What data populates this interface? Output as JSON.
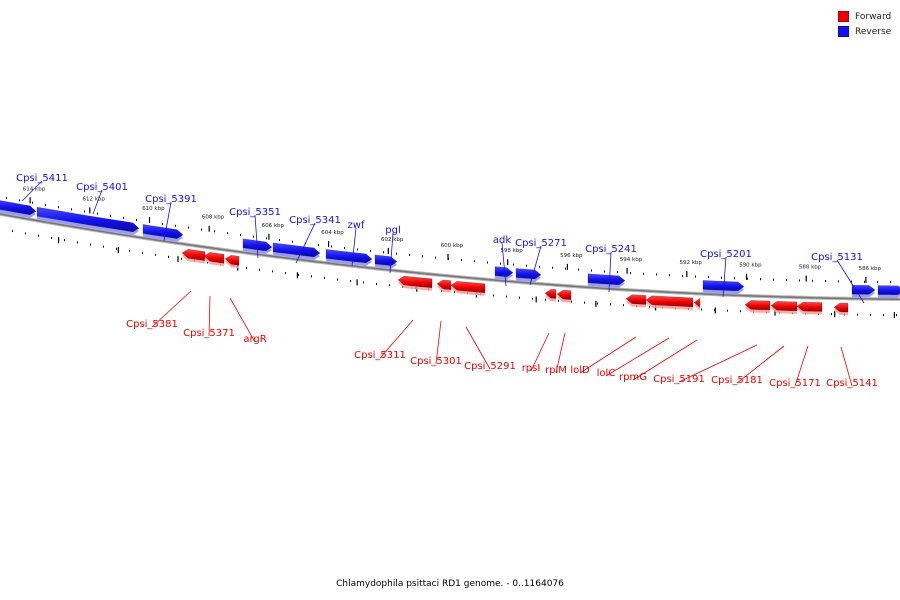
{
  "legend": [
    {
      "label": "Forward",
      "color": "#ee0000"
    },
    {
      "label": "Reverse",
      "color": "#1111ee"
    }
  ],
  "caption": "Chlamydophila psittaci RD1 genome. - 0..1164076",
  "colors": {
    "forward": "#ee0000",
    "reverse": "#1111ee",
    "backbone": "#777777",
    "tick": "#000000"
  },
  "axis": {
    "unit": "kbp",
    "labels": [
      "614 kbp",
      "612 kbp",
      "610 kbp",
      "608 kbp",
      "606 kbp",
      "604 kbp",
      "602 kbp",
      "600 kbp",
      "598 kbp",
      "596 kbp",
      "594 kbp",
      "592 kbp",
      "590 kbp",
      "588 kbp",
      "586 kbp"
    ]
  },
  "reverse_labels": [
    "Cpsi_5411",
    "Cpsi_5401",
    "Cpsi_5391",
    "Cpsi_5351",
    "Cpsi_5341",
    "zwf",
    "pgl",
    "adk",
    "Cpsi_5271",
    "Cpsi_5241",
    "Cpsi_5201",
    "Cpsi_5131"
  ],
  "forward_labels": [
    "Cpsi_5381",
    "Cpsi_5371",
    "argR",
    "Cpsi_5311",
    "Cpsi_5301",
    "Cpsi_5291",
    "rpsI",
    "rplM",
    "lolD",
    "lolC",
    "rpmG",
    "Cpsi_5191",
    "Cpsi_5181",
    "Cpsi_5171",
    "Cpsi_5141"
  ]
}
